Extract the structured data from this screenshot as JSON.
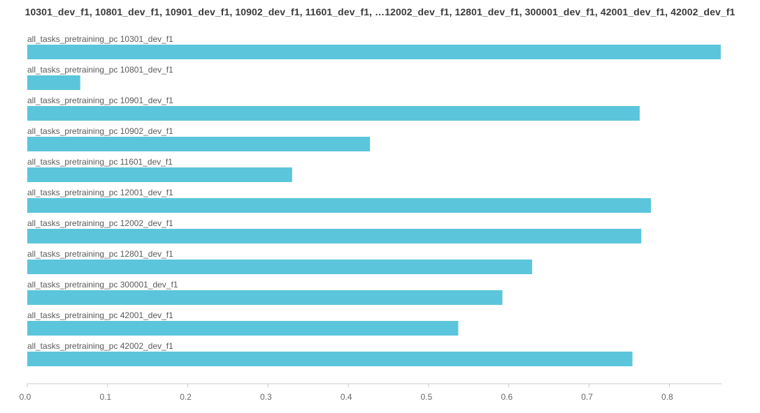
{
  "chart_data": {
    "type": "bar",
    "orientation": "horizontal",
    "title": "10301_dev_f1, 10801_dev_f1, 10901_dev_f1, 10902_dev_f1, 11601_dev_f1, …12002_dev_f1, 12801_dev_f1, 300001_dev_f1, 42001_dev_f1, 42002_dev_f1",
    "categories": [
      "all_tasks_pretraining_pc 10301_dev_f1",
      "all_tasks_pretraining_pc 10801_dev_f1",
      "all_tasks_pretraining_pc 10901_dev_f1",
      "all_tasks_pretraining_pc 10902_dev_f1",
      "all_tasks_pretraining_pc 11601_dev_f1",
      "all_tasks_pretraining_pc 12001_dev_f1",
      "all_tasks_pretraining_pc 12002_dev_f1",
      "all_tasks_pretraining_pc 12801_dev_f1",
      "all_tasks_pretraining_pc 300001_dev_f1",
      "all_tasks_pretraining_pc 42001_dev_f1",
      "all_tasks_pretraining_pc 42002_dev_f1"
    ],
    "values": [
      0.864,
      0.066,
      0.763,
      0.427,
      0.33,
      0.777,
      0.765,
      0.629,
      0.592,
      0.537,
      0.754
    ],
    "xlim": [
      0,
      0.865
    ],
    "xticks": [
      "0.0",
      "0.1",
      "0.2",
      "0.3",
      "0.4",
      "0.5",
      "0.6",
      "0.7",
      "0.8"
    ],
    "bar_color": "#5bc5dc",
    "axis_color": "#c8c8c8",
    "grid": false,
    "legend": "none"
  }
}
